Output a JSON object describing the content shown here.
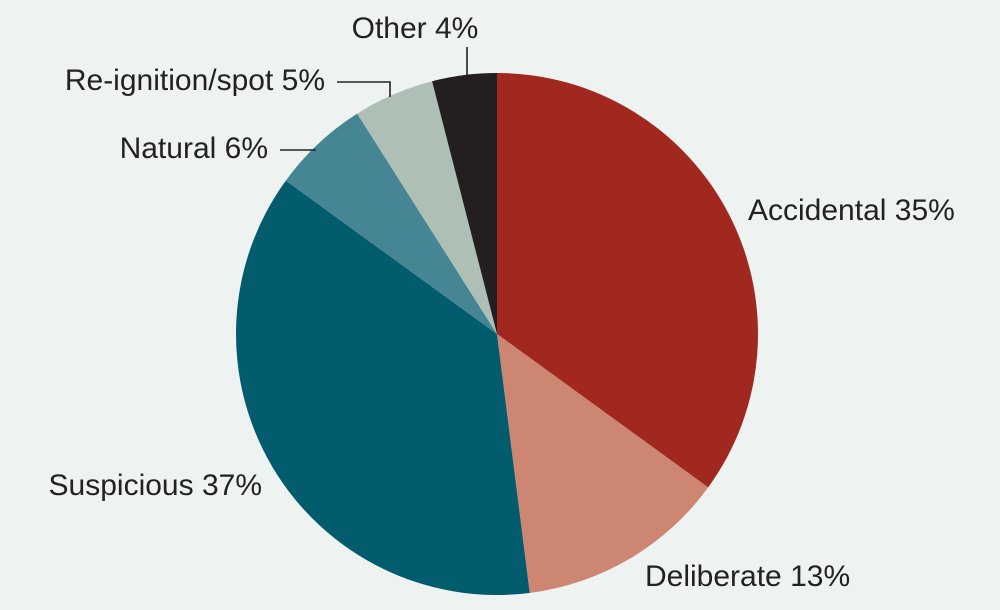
{
  "chart_data": {
    "type": "pie",
    "categories": [
      "Accidental",
      "Deliberate",
      "Suspicious",
      "Natural",
      "Re-ignition/spot",
      "Other"
    ],
    "values": [
      35,
      13,
      37,
      6,
      5,
      4
    ],
    "value_labels": [
      "35%",
      "13%",
      "37%",
      "6%",
      "5%",
      "4%"
    ],
    "colors": [
      "#a0281e",
      "#cc8672",
      "#025c6e",
      "#468593",
      "#aebfb6",
      "#231f20"
    ]
  }
}
